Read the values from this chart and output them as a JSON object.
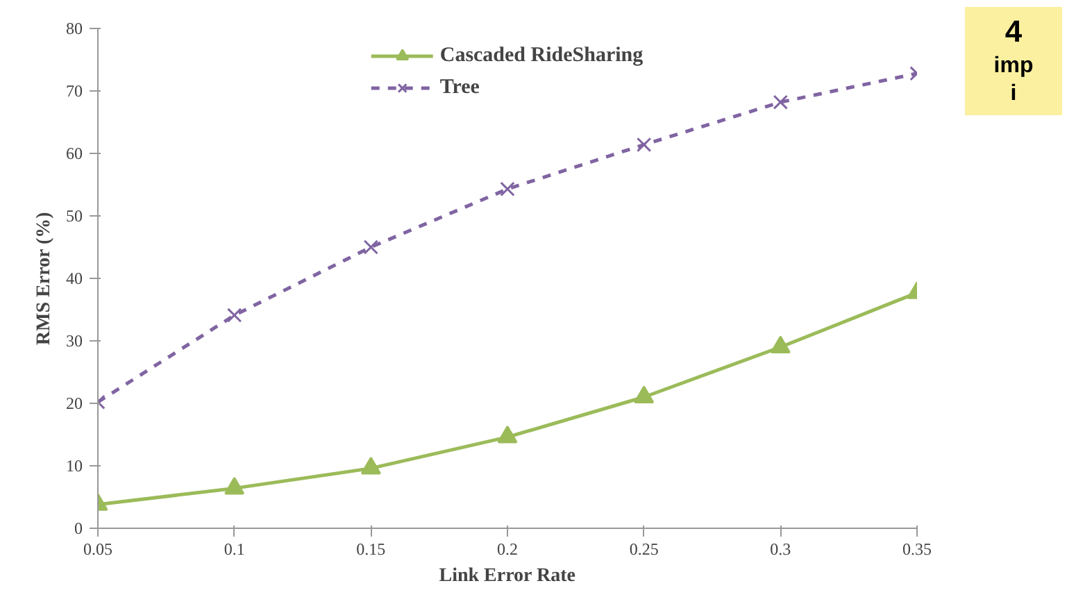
{
  "chart_data": {
    "type": "line",
    "xlabel": "Link Error Rate",
    "ylabel": "RMS Error (%)",
    "x": [
      0.05,
      0.1,
      0.15,
      0.2,
      0.25,
      0.3,
      0.35
    ],
    "series": [
      {
        "name": "Cascaded RideSharing",
        "color": "#9bbb59",
        "values": [
          3.8,
          6.4,
          9.6,
          14.6,
          21,
          29,
          37.7
        ],
        "marker": "triangle",
        "line_style": "solid"
      },
      {
        "name": "Tree",
        "color": "#8064a2",
        "values": [
          20.2,
          34.1,
          45,
          54.3,
          61.4,
          68.2,
          72.8
        ],
        "marker": "cross",
        "line_style": "dashed"
      }
    ],
    "xlim": [
      0.05,
      0.35
    ],
    "xticks": [
      0.05,
      0.1,
      0.15,
      0.2,
      0.25,
      0.3,
      0.35
    ],
    "ylim": [
      0,
      80
    ],
    "yticks": [
      0,
      10,
      20,
      30,
      40,
      50,
      60,
      70,
      80
    ],
    "grid": false,
    "legend": "top",
    "annotations": [
      "4",
      "imp",
      "i"
    ]
  }
}
